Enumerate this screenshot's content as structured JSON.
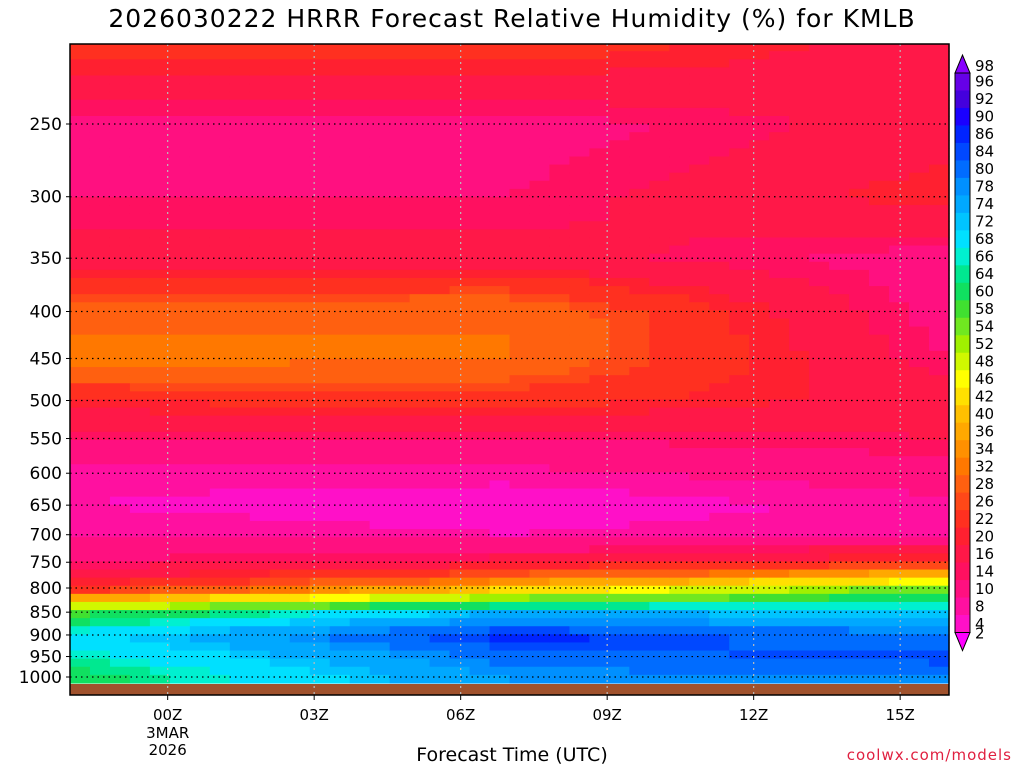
{
  "chart_data": {
    "type": "heatmap",
    "title": "2026030222 HRRR Forecast Relative Humidity (%) for KMLB",
    "xlabel": "Forecast Time (UTC)",
    "ylabel": "",
    "x_ticks": [
      {
        "label": "00Z",
        "hour": 0,
        "sub": [
          "3MAR",
          "2026"
        ]
      },
      {
        "label": "03Z",
        "hour": 3
      },
      {
        "label": "06Z",
        "hour": 6
      },
      {
        "label": "09Z",
        "hour": 9
      },
      {
        "label": "12Z",
        "hour": 12
      },
      {
        "label": "15Z",
        "hour": 15
      }
    ],
    "x_range_hours": [
      -2,
      16
    ],
    "y_ticks": [
      250,
      300,
      350,
      400,
      450,
      500,
      550,
      600,
      650,
      700,
      750,
      800,
      850,
      900,
      950,
      1000
    ],
    "y_unit": "hPa",
    "y_range": [
      200,
      1015
    ],
    "grid": true,
    "colorbar": {
      "labels": [
        98,
        96,
        92,
        90,
        86,
        84,
        80,
        78,
        74,
        72,
        68,
        66,
        64,
        60,
        58,
        54,
        52,
        48,
        46,
        42,
        40,
        36,
        34,
        32,
        28,
        26,
        22,
        20,
        16,
        14,
        10,
        8,
        4,
        2
      ],
      "colors": [
        "#8800ff",
        "#6600e8",
        "#4400dd",
        "#1a00ff",
        "#0024ff",
        "#0048ff",
        "#006cff",
        "#0090ff",
        "#00a8ff",
        "#00c4ff",
        "#00e0ff",
        "#00f0d0",
        "#00e890",
        "#10e060",
        "#40e030",
        "#70e820",
        "#a0f000",
        "#d0f800",
        "#ffff00",
        "#ffe000",
        "#ffc000",
        "#ffa800",
        "#ff9000",
        "#ff7800",
        "#ff6010",
        "#ff4818",
        "#ff3020",
        "#ff2030",
        "#ff1848",
        "#ff1060",
        "#ff1080",
        "#ff10a0",
        "#ff10c8",
        "#ff00ff"
      ]
    },
    "profile_levels": [
      1000,
      950,
      900,
      850,
      800,
      750,
      700,
      650,
      600,
      550,
      500,
      450,
      400,
      350,
      300,
      250,
      200
    ],
    "profile_values_start": [
      62,
      66,
      70,
      58,
      22,
      14,
      10,
      8,
      9,
      14,
      22,
      34,
      30,
      18,
      14,
      12,
      26
    ],
    "profile_values_mid": [
      78,
      82,
      88,
      74,
      40,
      18,
      8,
      6,
      9,
      14,
      24,
      32,
      32,
      18,
      14,
      12,
      26
    ],
    "profile_values_end": [
      80,
      86,
      80,
      72,
      56,
      24,
      10,
      9,
      12,
      16,
      18,
      14,
      12,
      12,
      22,
      18,
      18
    ],
    "ground_color": "#a0522d"
  },
  "credit": "coolwx.com/models"
}
